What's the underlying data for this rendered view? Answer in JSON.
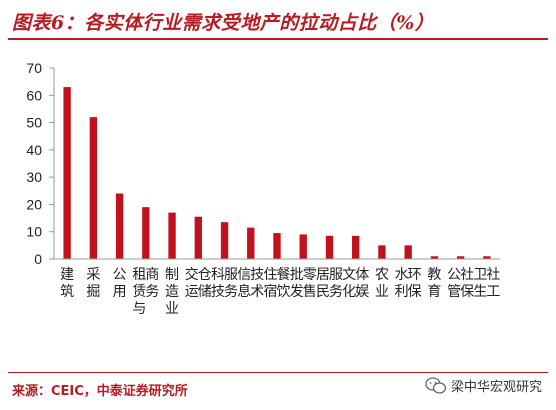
{
  "title": "图表6：各实体行业需求受地产的拉动占比（%）",
  "source": "来源：CEIC，中泰证券研究所",
  "watermark": "梁中华宏观研究",
  "colors": {
    "accent": "#b81c22",
    "bar": "#c0121c",
    "axis": "#999999",
    "text": "#222222"
  },
  "chart_data": {
    "type": "bar",
    "title": "",
    "xlabel": "",
    "ylabel": "",
    "ylim": [
      0,
      70
    ],
    "yticks": [
      0,
      10,
      20,
      30,
      40,
      50,
      60,
      70
    ],
    "grid": false,
    "categories": [
      "建筑",
      "采掘",
      "公用",
      "租赁与商务",
      "制造业",
      "交运仓储",
      "科技服务",
      "信息技术",
      "住宿餐饮",
      "批发零售",
      "居民服务",
      "文化体娱",
      "农业",
      "水利环保",
      "教育",
      "公管社保",
      "卫生社工"
    ],
    "values": [
      63,
      52,
      24,
      19,
      17,
      15.5,
      13.5,
      11.5,
      9.5,
      9,
      8.5,
      8.5,
      5,
      5,
      1,
      1,
      1
    ]
  }
}
